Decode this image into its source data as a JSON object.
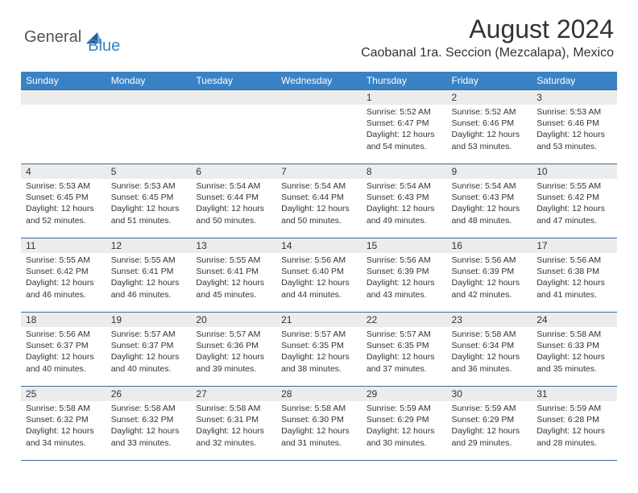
{
  "brand": {
    "part1": "General",
    "part2": "Blue"
  },
  "title": "August 2024",
  "location": "Caobanal 1ra. Seccion (Mezcalapa), Mexico",
  "colors": {
    "header_bg": "#3b82c4",
    "band_bg": "#ececec",
    "border": "#3b6a9a",
    "text": "#333333",
    "bg": "#ffffff"
  },
  "fonts": {
    "title_size": 32,
    "location_size": 16,
    "dow_size": 12,
    "daynum_size": 12,
    "content_size": 10.5
  },
  "daysOfWeek": [
    "Sunday",
    "Monday",
    "Tuesday",
    "Wednesday",
    "Thursday",
    "Friday",
    "Saturday"
  ],
  "weeks": [
    [
      {
        "day": "",
        "lines": []
      },
      {
        "day": "",
        "lines": []
      },
      {
        "day": "",
        "lines": []
      },
      {
        "day": "",
        "lines": []
      },
      {
        "day": "1",
        "lines": [
          "Sunrise: 5:52 AM",
          "Sunset: 6:47 PM",
          "Daylight: 12 hours",
          "and 54 minutes."
        ]
      },
      {
        "day": "2",
        "lines": [
          "Sunrise: 5:52 AM",
          "Sunset: 6:46 PM",
          "Daylight: 12 hours",
          "and 53 minutes."
        ]
      },
      {
        "day": "3",
        "lines": [
          "Sunrise: 5:53 AM",
          "Sunset: 6:46 PM",
          "Daylight: 12 hours",
          "and 53 minutes."
        ]
      }
    ],
    [
      {
        "day": "4",
        "lines": [
          "Sunrise: 5:53 AM",
          "Sunset: 6:45 PM",
          "Daylight: 12 hours",
          "and 52 minutes."
        ]
      },
      {
        "day": "5",
        "lines": [
          "Sunrise: 5:53 AM",
          "Sunset: 6:45 PM",
          "Daylight: 12 hours",
          "and 51 minutes."
        ]
      },
      {
        "day": "6",
        "lines": [
          "Sunrise: 5:54 AM",
          "Sunset: 6:44 PM",
          "Daylight: 12 hours",
          "and 50 minutes."
        ]
      },
      {
        "day": "7",
        "lines": [
          "Sunrise: 5:54 AM",
          "Sunset: 6:44 PM",
          "Daylight: 12 hours",
          "and 50 minutes."
        ]
      },
      {
        "day": "8",
        "lines": [
          "Sunrise: 5:54 AM",
          "Sunset: 6:43 PM",
          "Daylight: 12 hours",
          "and 49 minutes."
        ]
      },
      {
        "day": "9",
        "lines": [
          "Sunrise: 5:54 AM",
          "Sunset: 6:43 PM",
          "Daylight: 12 hours",
          "and 48 minutes."
        ]
      },
      {
        "day": "10",
        "lines": [
          "Sunrise: 5:55 AM",
          "Sunset: 6:42 PM",
          "Daylight: 12 hours",
          "and 47 minutes."
        ]
      }
    ],
    [
      {
        "day": "11",
        "lines": [
          "Sunrise: 5:55 AM",
          "Sunset: 6:42 PM",
          "Daylight: 12 hours",
          "and 46 minutes."
        ]
      },
      {
        "day": "12",
        "lines": [
          "Sunrise: 5:55 AM",
          "Sunset: 6:41 PM",
          "Daylight: 12 hours",
          "and 46 minutes."
        ]
      },
      {
        "day": "13",
        "lines": [
          "Sunrise: 5:55 AM",
          "Sunset: 6:41 PM",
          "Daylight: 12 hours",
          "and 45 minutes."
        ]
      },
      {
        "day": "14",
        "lines": [
          "Sunrise: 5:56 AM",
          "Sunset: 6:40 PM",
          "Daylight: 12 hours",
          "and 44 minutes."
        ]
      },
      {
        "day": "15",
        "lines": [
          "Sunrise: 5:56 AM",
          "Sunset: 6:39 PM",
          "Daylight: 12 hours",
          "and 43 minutes."
        ]
      },
      {
        "day": "16",
        "lines": [
          "Sunrise: 5:56 AM",
          "Sunset: 6:39 PM",
          "Daylight: 12 hours",
          "and 42 minutes."
        ]
      },
      {
        "day": "17",
        "lines": [
          "Sunrise: 5:56 AM",
          "Sunset: 6:38 PM",
          "Daylight: 12 hours",
          "and 41 minutes."
        ]
      }
    ],
    [
      {
        "day": "18",
        "lines": [
          "Sunrise: 5:56 AM",
          "Sunset: 6:37 PM",
          "Daylight: 12 hours",
          "and 40 minutes."
        ]
      },
      {
        "day": "19",
        "lines": [
          "Sunrise: 5:57 AM",
          "Sunset: 6:37 PM",
          "Daylight: 12 hours",
          "and 40 minutes."
        ]
      },
      {
        "day": "20",
        "lines": [
          "Sunrise: 5:57 AM",
          "Sunset: 6:36 PM",
          "Daylight: 12 hours",
          "and 39 minutes."
        ]
      },
      {
        "day": "21",
        "lines": [
          "Sunrise: 5:57 AM",
          "Sunset: 6:35 PM",
          "Daylight: 12 hours",
          "and 38 minutes."
        ]
      },
      {
        "day": "22",
        "lines": [
          "Sunrise: 5:57 AM",
          "Sunset: 6:35 PM",
          "Daylight: 12 hours",
          "and 37 minutes."
        ]
      },
      {
        "day": "23",
        "lines": [
          "Sunrise: 5:58 AM",
          "Sunset: 6:34 PM",
          "Daylight: 12 hours",
          "and 36 minutes."
        ]
      },
      {
        "day": "24",
        "lines": [
          "Sunrise: 5:58 AM",
          "Sunset: 6:33 PM",
          "Daylight: 12 hours",
          "and 35 minutes."
        ]
      }
    ],
    [
      {
        "day": "25",
        "lines": [
          "Sunrise: 5:58 AM",
          "Sunset: 6:32 PM",
          "Daylight: 12 hours",
          "and 34 minutes."
        ]
      },
      {
        "day": "26",
        "lines": [
          "Sunrise: 5:58 AM",
          "Sunset: 6:32 PM",
          "Daylight: 12 hours",
          "and 33 minutes."
        ]
      },
      {
        "day": "27",
        "lines": [
          "Sunrise: 5:58 AM",
          "Sunset: 6:31 PM",
          "Daylight: 12 hours",
          "and 32 minutes."
        ]
      },
      {
        "day": "28",
        "lines": [
          "Sunrise: 5:58 AM",
          "Sunset: 6:30 PM",
          "Daylight: 12 hours",
          "and 31 minutes."
        ]
      },
      {
        "day": "29",
        "lines": [
          "Sunrise: 5:59 AM",
          "Sunset: 6:29 PM",
          "Daylight: 12 hours",
          "and 30 minutes."
        ]
      },
      {
        "day": "30",
        "lines": [
          "Sunrise: 5:59 AM",
          "Sunset: 6:29 PM",
          "Daylight: 12 hours",
          "and 29 minutes."
        ]
      },
      {
        "day": "31",
        "lines": [
          "Sunrise: 5:59 AM",
          "Sunset: 6:28 PM",
          "Daylight: 12 hours",
          "and 28 minutes."
        ]
      }
    ]
  ]
}
